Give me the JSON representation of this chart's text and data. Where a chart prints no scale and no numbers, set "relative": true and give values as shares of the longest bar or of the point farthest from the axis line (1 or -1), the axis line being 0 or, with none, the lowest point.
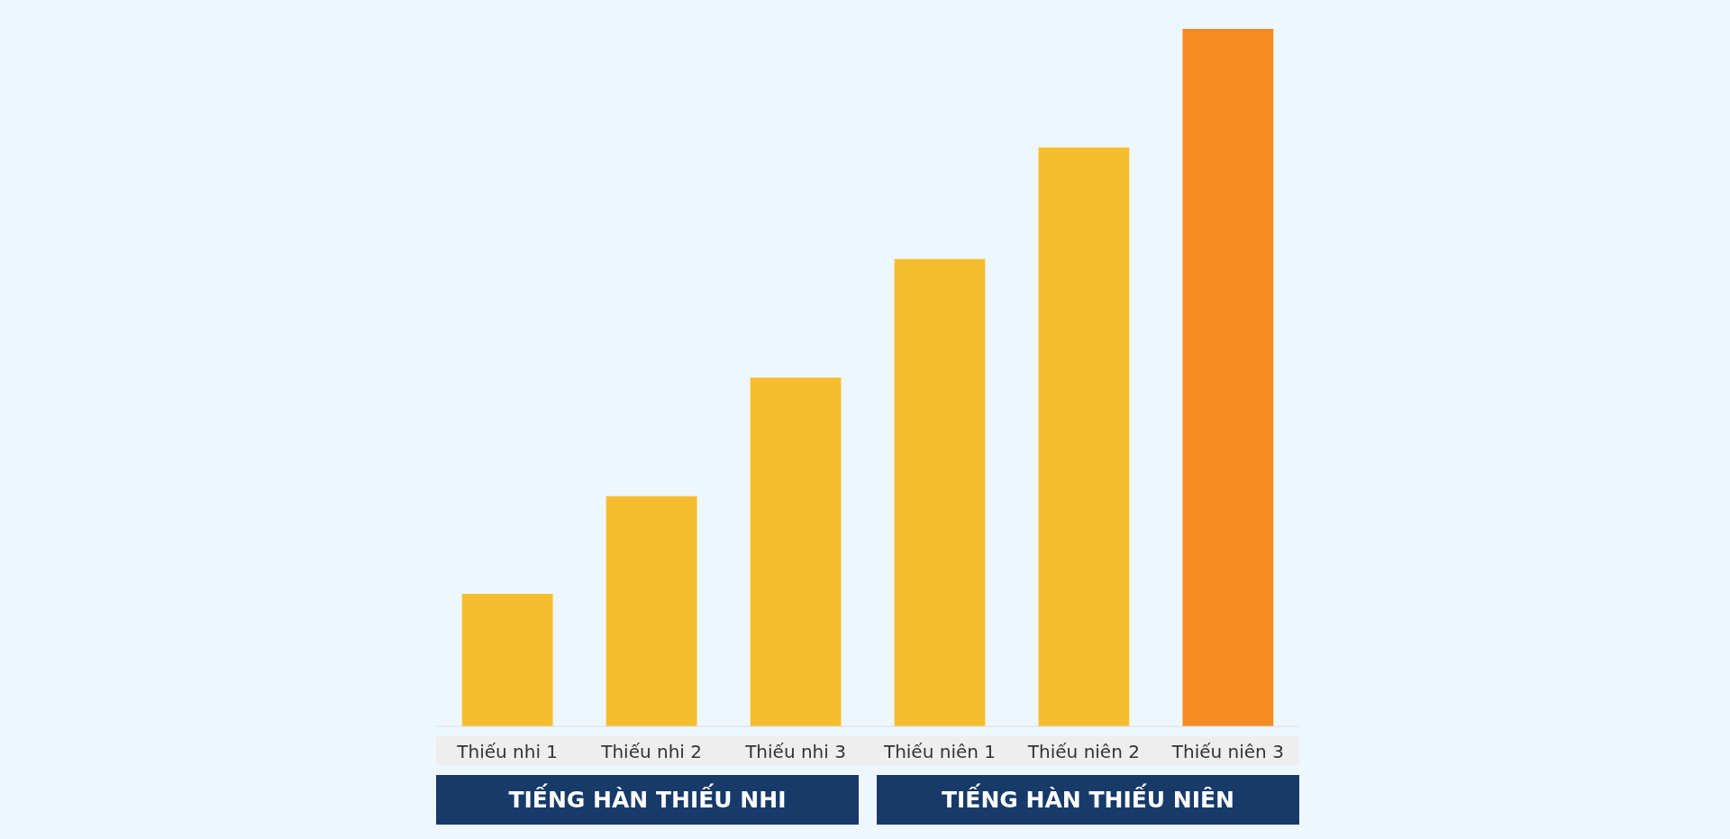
{
  "chart_data": {
    "type": "bar",
    "relative": true,
    "categories": [
      "Thiếu nhi 1",
      "Thiếu nhi 2",
      "Thiếu nhi 3",
      "Thiếu niên 1",
      "Thiếu niên 2",
      "Thiếu niên 3"
    ],
    "values": [
      0.19,
      0.33,
      0.5,
      0.67,
      0.83,
      1
    ],
    "colors": [
      "#f6bd2e",
      "#f6bd2e",
      "#f6bd2e",
      "#f6bd2e",
      "#f6bd2e",
      "#f48c22"
    ],
    "annotations": [
      "TIẾNG HÀN THIẾU NHI",
      "TIẾNG HÀN THIẾU NIÊN"
    ]
  }
}
